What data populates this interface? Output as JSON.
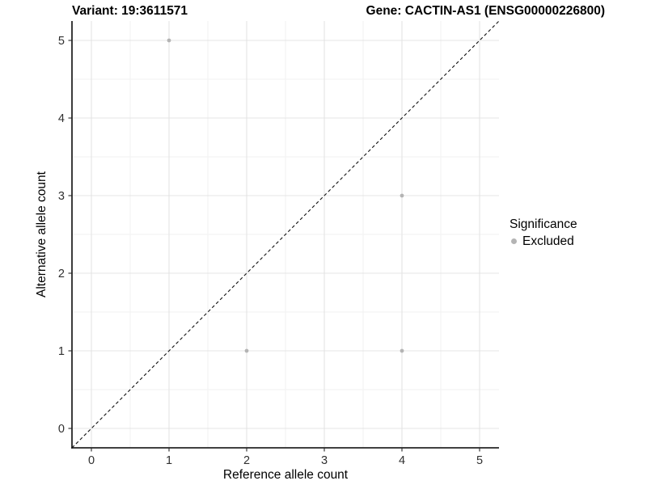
{
  "chart_data": {
    "type": "scatter",
    "title_left": "Variant: 19:3611571",
    "title_right": "Gene: CACTIN-AS1 (ENSG00000226800)",
    "xlabel": "Reference allele count",
    "ylabel": "Alternative allele count",
    "xlim": [
      -0.25,
      5.25
    ],
    "ylim": [
      -0.25,
      5.25
    ],
    "x_ticks": [
      0,
      1,
      2,
      3,
      4,
      5
    ],
    "y_ticks": [
      0,
      1,
      2,
      3,
      4,
      5
    ],
    "grid": {
      "major": true,
      "minor": true
    },
    "reference_line": {
      "type": "identity",
      "style": "dashed"
    },
    "series": [
      {
        "name": "Excluded",
        "color": "#b4b4b4",
        "points": [
          [
            1,
            5
          ],
          [
            4,
            3
          ],
          [
            2,
            1
          ],
          [
            4,
            1
          ]
        ]
      }
    ],
    "legend": {
      "title": "Significance",
      "position": "right",
      "items": [
        {
          "label": "Excluded",
          "color": "#b4b4b4"
        }
      ]
    },
    "colors": {
      "background": "#ffffff",
      "grid_major": "#e4e4e4",
      "grid_minor": "#f1f1f1",
      "axis_line": "#262626",
      "tick_label": "#303030",
      "reference_line": "#111111"
    }
  }
}
